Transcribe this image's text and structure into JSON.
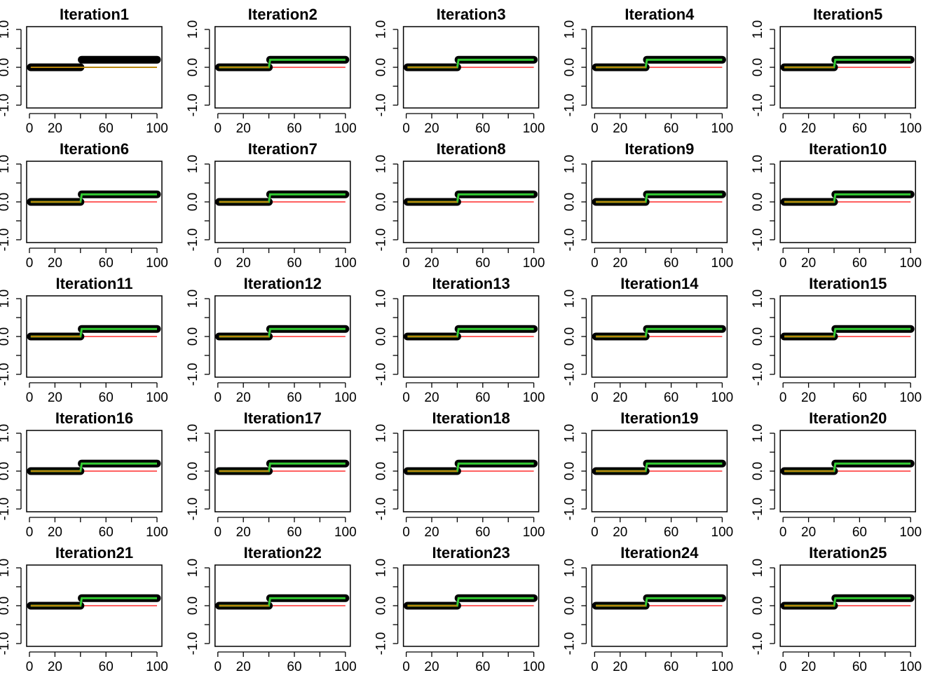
{
  "chart_data": {
    "type": "line",
    "layout": {
      "rows": 5,
      "cols": 5
    },
    "xlim": [
      0,
      100
    ],
    "ylim": [
      -1,
      1
    ],
    "x_ticks": [
      0,
      20,
      40,
      60,
      80,
      100
    ],
    "x_tick_labels": [
      "0",
      "20",
      "",
      "60",
      "",
      "100"
    ],
    "y_ticks": [
      -1.0,
      -0.5,
      0.0,
      0.5,
      1.0
    ],
    "y_tick_labels": [
      "-1.0",
      "",
      "0.0",
      "",
      "1.0"
    ],
    "true_signal": {
      "x": [
        1,
        40,
        41,
        100
      ],
      "y": [
        0,
        0,
        0.2,
        0.2
      ]
    },
    "colors": {
      "points": "#000000",
      "fit": "#33cc33",
      "fit_first": "#b8860b",
      "baseline": "#ff0000",
      "frame": "#000000"
    },
    "panels": [
      {
        "title": "Iteration1",
        "fit_reached_signal": false
      },
      {
        "title": "Iteration2",
        "fit_reached_signal": true
      },
      {
        "title": "Iteration3",
        "fit_reached_signal": true
      },
      {
        "title": "Iteration4",
        "fit_reached_signal": true
      },
      {
        "title": "Iteration5",
        "fit_reached_signal": true
      },
      {
        "title": "Iteration6",
        "fit_reached_signal": true
      },
      {
        "title": "Iteration7",
        "fit_reached_signal": true
      },
      {
        "title": "Iteration8",
        "fit_reached_signal": true
      },
      {
        "title": "Iteration9",
        "fit_reached_signal": true
      },
      {
        "title": "Iteration10",
        "fit_reached_signal": true
      },
      {
        "title": "Iteration11",
        "fit_reached_signal": true
      },
      {
        "title": "Iteration12",
        "fit_reached_signal": true
      },
      {
        "title": "Iteration13",
        "fit_reached_signal": true
      },
      {
        "title": "Iteration14",
        "fit_reached_signal": true
      },
      {
        "title": "Iteration15",
        "fit_reached_signal": true
      },
      {
        "title": "Iteration16",
        "fit_reached_signal": true
      },
      {
        "title": "Iteration17",
        "fit_reached_signal": true
      },
      {
        "title": "Iteration18",
        "fit_reached_signal": true
      },
      {
        "title": "Iteration19",
        "fit_reached_signal": true
      },
      {
        "title": "Iteration20",
        "fit_reached_signal": true
      },
      {
        "title": "Iteration21",
        "fit_reached_signal": true
      },
      {
        "title": "Iteration22",
        "fit_reached_signal": true
      },
      {
        "title": "Iteration23",
        "fit_reached_signal": true
      },
      {
        "title": "Iteration24",
        "fit_reached_signal": true
      },
      {
        "title": "Iteration25",
        "fit_reached_signal": true
      }
    ]
  }
}
